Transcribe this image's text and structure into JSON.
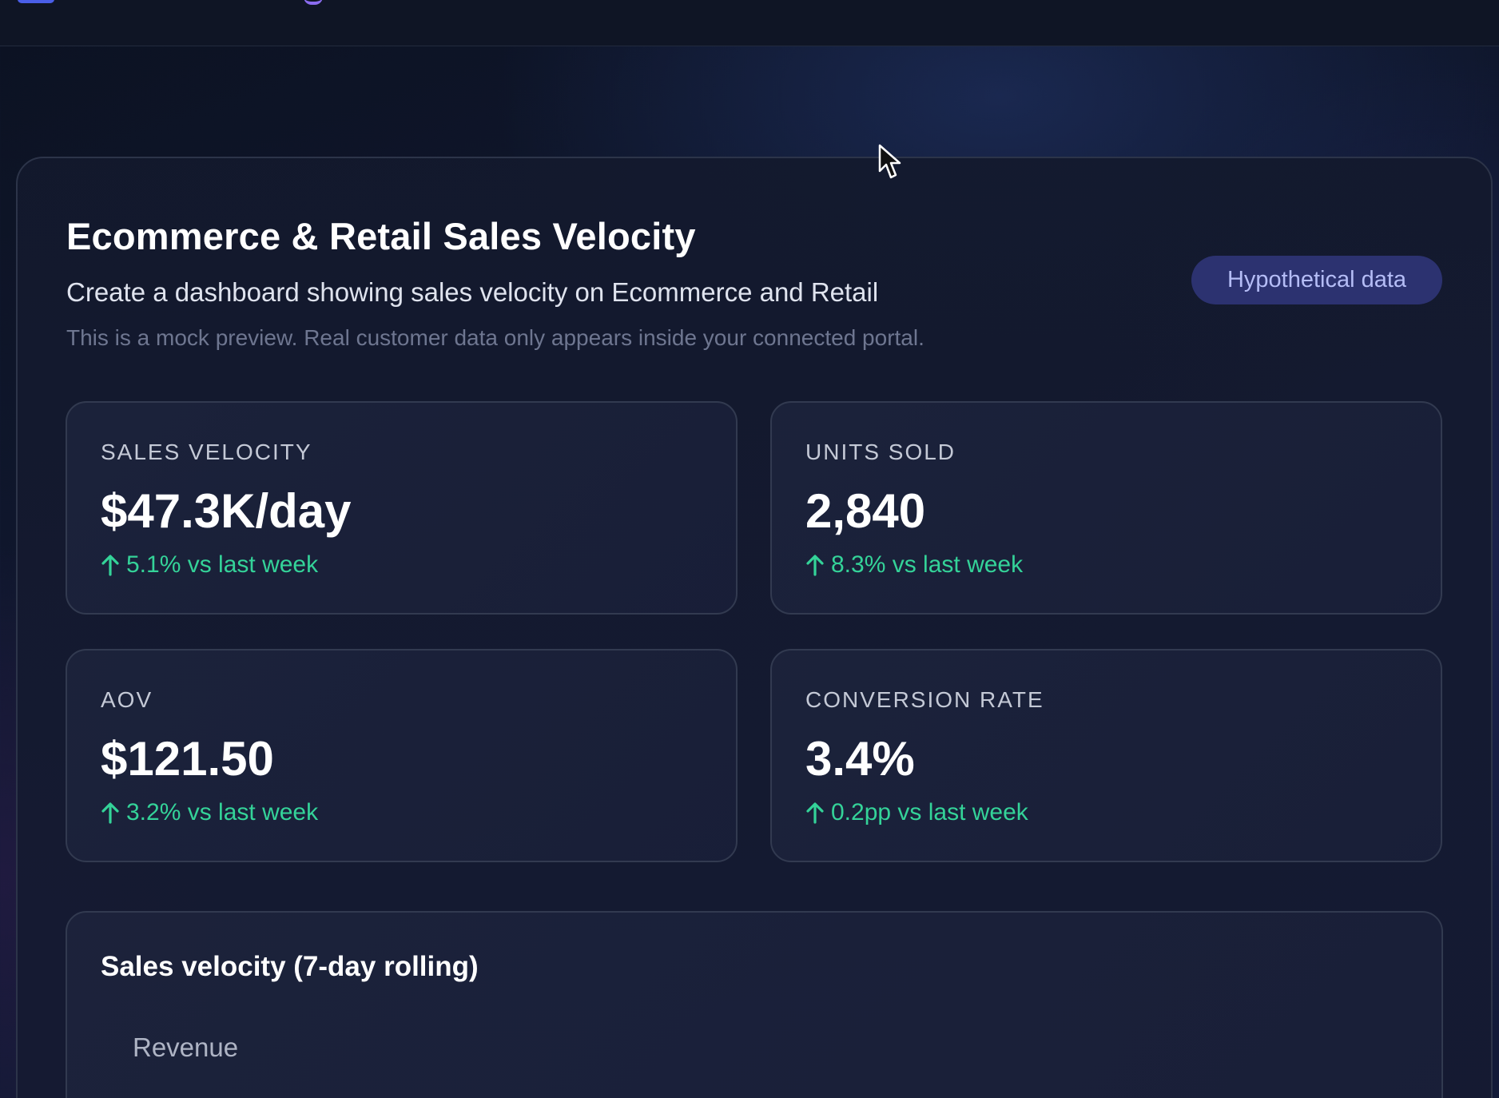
{
  "header": {},
  "dashboard": {
    "title": "Ecommerce & Retail Sales Velocity",
    "subtitle": "Create a dashboard showing sales velocity on Ecommerce and Retail",
    "note": "This is a mock preview. Real customer data only appears inside your connected portal.",
    "badge": "Hypothetical data"
  },
  "kpis": [
    {
      "label": "SALES VELOCITY",
      "value": "$47.3K/day",
      "delta": "5.1% vs last week",
      "trend": "up"
    },
    {
      "label": "UNITS SOLD",
      "value": "2,840",
      "delta": "8.3% vs last week",
      "trend": "up"
    },
    {
      "label": "AOV",
      "value": "$121.50",
      "delta": "3.2% vs last week",
      "trend": "up"
    },
    {
      "label": "CONVERSION RATE",
      "value": "3.4%",
      "delta": "0.2pp vs last week",
      "trend": "up"
    }
  ],
  "chart": {
    "title": "Sales velocity (7-day rolling)",
    "legend": [
      "Revenue"
    ]
  },
  "colors": {
    "positive": "#34d399",
    "badge_bg": "#2c3270",
    "badge_text": "#b5bdf6",
    "accent": "#4a5ee8"
  }
}
